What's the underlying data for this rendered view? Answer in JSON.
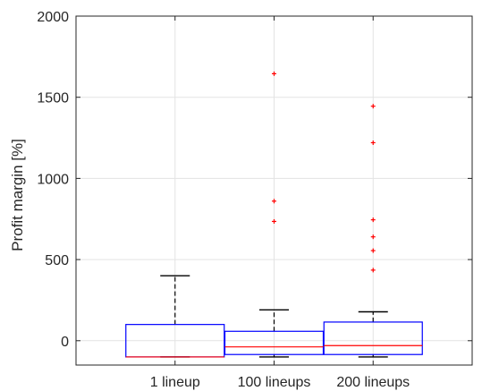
{
  "chart_data": {
    "type": "box",
    "title": "",
    "xlabel": "",
    "ylabel": "Profit margin [%]",
    "ylim": [
      -150,
      2000
    ],
    "yticks": [
      0,
      500,
      1000,
      1500,
      2000
    ],
    "grid": true,
    "categories": [
      "1 lineup",
      "100 lineups",
      "200 lineups"
    ],
    "boxes": [
      {
        "category": "1 lineup",
        "whisker_low": -100,
        "q1": -100,
        "median": -100,
        "q3": 100,
        "whisker_high": 400,
        "outliers": []
      },
      {
        "category": "100 lineups",
        "whisker_low": -100,
        "q1": -85,
        "median": -38,
        "q3": 58,
        "whisker_high": 190,
        "outliers": [
          735,
          860,
          1645
        ]
      },
      {
        "category": "200 lineups",
        "whisker_low": -100,
        "q1": -85,
        "median": -30,
        "q3": 115,
        "whisker_high": 178,
        "outliers": [
          435,
          555,
          640,
          745,
          1220,
          1445
        ]
      }
    ],
    "colors": {
      "box": "#0000ff",
      "median": "#ff0000",
      "outlier": "#ff0000",
      "whisker": "#000000",
      "grid": "#e3e3e3",
      "axes": "#262626"
    }
  }
}
